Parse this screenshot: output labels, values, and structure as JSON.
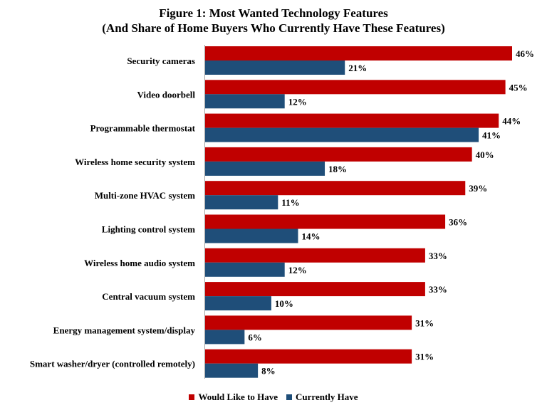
{
  "chart_data": {
    "type": "bar",
    "orientation": "horizontal",
    "title": "Figure 1: Most Wanted Technology Features",
    "subtitle": "(And Share of Home Buyers Who Currently Have These Features)",
    "categories": [
      "Security cameras",
      "Video doorbell",
      "Programmable thermostat",
      "Wireless home security system",
      "Multi-zone HVAC system",
      "Lighting control system",
      "Wireless home audio system",
      "Central vacuum system",
      "Energy management system/display",
      "Smart washer/dryer (controlled remotely)"
    ],
    "series": [
      {
        "name": "Would Like to Have",
        "color": "#c00000",
        "values": [
          46,
          45,
          44,
          40,
          39,
          36,
          33,
          33,
          31,
          31
        ]
      },
      {
        "name": "Currently Have",
        "color": "#1f4e79",
        "values": [
          21,
          12,
          41,
          18,
          11,
          14,
          12,
          10,
          6,
          8
        ]
      }
    ],
    "value_suffix": "%",
    "xlim": [
      0,
      46
    ],
    "grid": false,
    "legend_position": "bottom"
  }
}
